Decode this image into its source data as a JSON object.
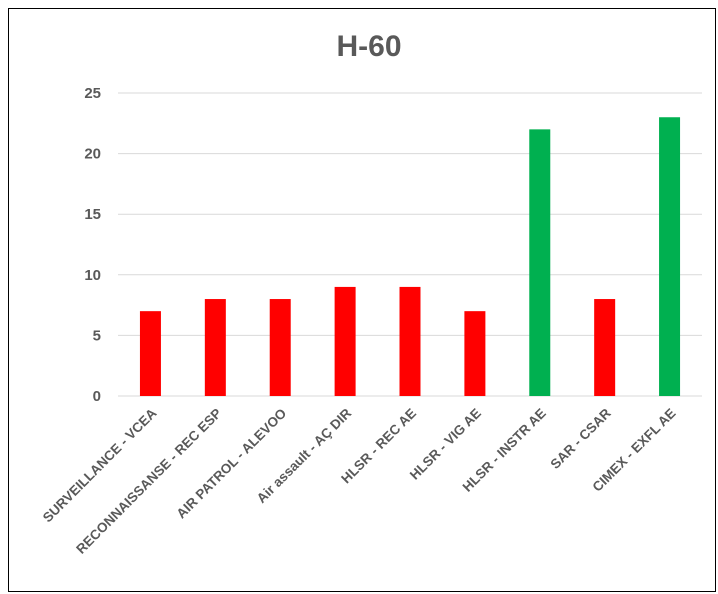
{
  "chart_data": {
    "type": "bar",
    "title": "H-60",
    "xlabel": "",
    "ylabel": "",
    "ylim": [
      0,
      25
    ],
    "yticks": [
      0,
      5,
      10,
      15,
      20,
      25
    ],
    "grid": true,
    "legend": "none",
    "categories": [
      "SURVEILLANCE - VCEA",
      "RECONNAISSANSE - REC ESP",
      "AIR PATROL - ALEVOO",
      "Air assault - AÇ DIR",
      "HLSR - REC AE",
      "HLSR - VIG AE",
      "HLSR - INSTR AE",
      "SAR - CSAR",
      "CIMEX - EXFL AE"
    ],
    "values": [
      7,
      8,
      8,
      9,
      9,
      7,
      22,
      8,
      23
    ],
    "bar_colors": [
      "#ff0000",
      "#ff0000",
      "#ff0000",
      "#ff0000",
      "#ff0000",
      "#ff0000",
      "#00b050",
      "#ff0000",
      "#00b050"
    ],
    "gridline_color": "#d9d9d9"
  }
}
